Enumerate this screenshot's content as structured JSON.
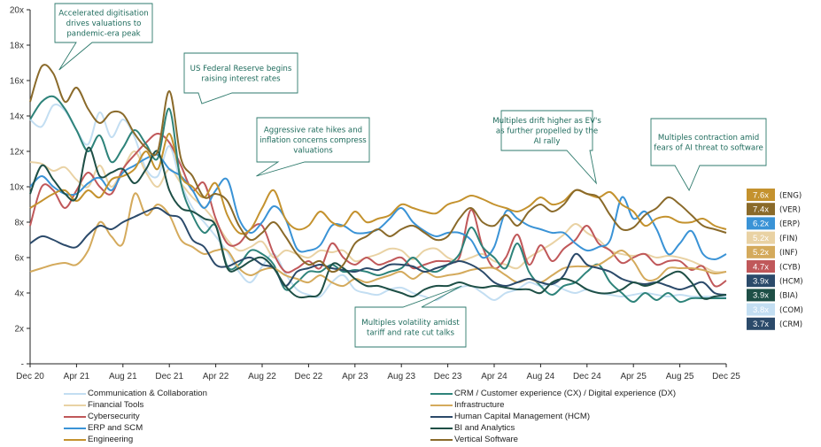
{
  "chart_data": {
    "type": "line",
    "title": "",
    "xlabel": "",
    "ylabel": "",
    "ylim": [
      0,
      20
    ],
    "y_ticks": [
      {
        "value": 0,
        "label": "-"
      },
      {
        "value": 2,
        "label": "2x"
      },
      {
        "value": 4,
        "label": "4x"
      },
      {
        "value": 6,
        "label": "6x"
      },
      {
        "value": 8,
        "label": "8x"
      },
      {
        "value": 10,
        "label": "10x"
      },
      {
        "value": 12,
        "label": "12x"
      },
      {
        "value": 14,
        "label": "14x"
      },
      {
        "value": 16,
        "label": "16x"
      },
      {
        "value": 18,
        "label": "18x"
      },
      {
        "value": 20,
        "label": "20x"
      }
    ],
    "x_ticks": [
      "Dec 20",
      "Apr 21",
      "Aug 21",
      "Dec 21",
      "Apr 22",
      "Aug 22",
      "Dec 22",
      "Apr 23",
      "Aug 23",
      "Dec 23",
      "Apr 24",
      "Aug 24",
      "Dec 24",
      "Apr 25",
      "Aug 25",
      "Dec 25"
    ],
    "x_range_months": [
      0,
      60
    ],
    "x_step_months": 1,
    "grid": false,
    "legend_position": "bottom",
    "series": [
      {
        "name": "Communication & Collaboration",
        "code": "COM",
        "color": "#c3def2",
        "last": "3.8x",
        "values": [
          13.8,
          13.4,
          14.6,
          14.3,
          13.2,
          12.4,
          14.2,
          12.8,
          13.8,
          12.8,
          11.0,
          10.6,
          12.3,
          10.2,
          8.8,
          8.0,
          7.2,
          6.3,
          5.2,
          4.6,
          5.5,
          6.2,
          5.1,
          4.2,
          3.9,
          3.8,
          4.6,
          5.0,
          4.2,
          4.0,
          3.9,
          4.2,
          4.3,
          4.0,
          3.8,
          3.6,
          4.0,
          4.3,
          4.4,
          4.0,
          3.6,
          4.0,
          4.2,
          4.6,
          4.4,
          4.5,
          4.2,
          4.0,
          4.2,
          4.0,
          3.9,
          3.8,
          3.9,
          4.0,
          3.9,
          3.8,
          3.9,
          3.8,
          3.8,
          3.8,
          3.8
        ]
      },
      {
        "name": "Financial Tools",
        "code": "FIN",
        "color": "#e9d2a4",
        "last": "5.2x",
        "values": [
          11.4,
          11.3,
          10.9,
          11.1,
          10.4,
          10.0,
          11.2,
          10.0,
          11.0,
          12.0,
          10.8,
          10.0,
          11.0,
          10.2,
          9.4,
          8.8,
          8.0,
          7.0,
          6.4,
          6.6,
          6.9,
          6.0,
          6.4,
          6.2,
          6.0,
          6.4,
          6.3,
          6.4,
          5.8,
          6.0,
          6.2,
          6.5,
          6.4,
          5.9,
          6.4,
          6.5,
          6.0,
          5.8,
          6.0,
          6.2,
          5.8,
          5.6,
          5.4,
          6.0,
          6.4,
          6.8,
          7.3,
          7.9,
          7.4,
          7.0,
          6.4,
          6.2,
          6.1,
          6.2,
          6.0,
          6.1,
          6.0,
          5.8,
          5.5,
          5.2,
          5.2
        ]
      },
      {
        "name": "Cybersecurity",
        "code": "CYB",
        "color": "#c0585a",
        "last": "4.7x",
        "values": [
          7.8,
          10.0,
          9.8,
          8.8,
          9.8,
          10.8,
          10.0,
          9.6,
          11.0,
          11.8,
          12.5,
          13.0,
          12.5,
          11.2,
          9.8,
          10.2,
          8.2,
          6.8,
          6.8,
          7.6,
          7.8,
          6.2,
          5.2,
          5.4,
          5.8,
          5.4,
          6.8,
          6.0,
          5.6,
          6.0,
          5.6,
          5.8,
          6.0,
          5.4,
          5.6,
          5.8,
          5.8,
          6.0,
          8.7,
          6.6,
          5.4,
          6.0,
          7.3,
          5.6,
          6.7,
          5.8,
          6.5,
          7.0,
          7.8,
          6.8,
          6.4,
          5.7,
          6.0,
          6.2,
          5.6,
          5.8,
          5.8,
          5.3,
          5.5,
          4.4,
          4.7
        ]
      },
      {
        "name": "ERP and SCM",
        "code": "ERP",
        "color": "#3a93d6",
        "last": "6.2x",
        "values": [
          10.0,
          10.6,
          10.0,
          9.6,
          9.6,
          10.2,
          10.5,
          9.8,
          10.8,
          11.2,
          11.6,
          11.8,
          11.0,
          10.6,
          9.8,
          8.8,
          9.8,
          10.4,
          8.2,
          7.4,
          8.0,
          8.9,
          8.2,
          6.5,
          6.4,
          6.7,
          7.8,
          7.8,
          7.4,
          7.4,
          7.6,
          8.2,
          8.8,
          8.0,
          7.5,
          7.2,
          7.4,
          7.4,
          7.0,
          6.0,
          6.6,
          8.6,
          8.2,
          7.8,
          7.6,
          7.4,
          7.4,
          6.8,
          6.4,
          6.6,
          7.0,
          9.4,
          8.2,
          8.6,
          7.6,
          6.2,
          6.8,
          7.5,
          6.2,
          5.9,
          6.2
        ]
      },
      {
        "name": "Engineering",
        "code": "ENG",
        "color": "#c4922e",
        "last": "7.6x",
        "values": [
          8.8,
          9.2,
          9.6,
          9.8,
          9.2,
          9.8,
          9.4,
          10.4,
          10.6,
          11.0,
          12.0,
          11.0,
          13.0,
          10.6,
          10.0,
          9.4,
          10.2,
          8.4,
          7.4,
          7.6,
          8.8,
          9.8,
          8.2,
          7.6,
          7.8,
          8.6,
          8.0,
          7.8,
          8.6,
          8.0,
          8.2,
          8.4,
          9.0,
          8.8,
          8.6,
          8.5,
          9.0,
          9.2,
          9.5,
          9.3,
          9.0,
          8.8,
          8.6,
          8.9,
          9.4,
          9.0,
          9.2,
          9.8,
          9.6,
          9.4,
          9.7,
          9.0,
          8.6,
          7.8,
          8.2,
          8.3,
          8.0,
          8.0,
          8.2,
          7.8,
          7.6
        ]
      },
      {
        "name": "CRM / Customer experience (CX) / Digital experience (DX)",
        "code": "CRM",
        "color": "#2e837a",
        "last": "3.7x",
        "values": [
          13.8,
          14.8,
          15.1,
          14.4,
          13.2,
          12.0,
          12.9,
          11.4,
          12.2,
          13.2,
          12.4,
          11.6,
          14.4,
          10.2,
          8.4,
          7.4,
          7.8,
          5.5,
          5.6,
          6.4,
          6.2,
          5.6,
          4.2,
          4.6,
          5.2,
          5.2,
          5.6,
          5.2,
          5.3,
          5.2,
          5.0,
          5.2,
          5.4,
          6.0,
          5.4,
          5.2,
          5.6,
          6.2,
          7.7,
          6.6,
          6.0,
          5.4,
          6.8,
          5.2,
          4.4,
          3.9,
          4.4,
          4.6,
          5.2,
          5.6,
          4.6,
          4.0,
          3.5,
          4.0,
          3.6,
          4.0,
          3.5,
          3.7,
          3.7,
          3.7,
          3.7
        ]
      },
      {
        "name": "Infrastructure",
        "code": "INF",
        "color": "#d4aa5c",
        "last": "5.2x",
        "values": [
          5.2,
          5.4,
          5.6,
          5.7,
          5.6,
          6.4,
          8.0,
          7.2,
          6.8,
          9.6,
          8.4,
          9.0,
          8.4,
          7.0,
          6.6,
          6.2,
          6.4,
          6.4,
          5.4,
          5.0,
          5.3,
          5.4,
          5.0,
          4.8,
          4.6,
          5.0,
          4.6,
          4.4,
          4.8,
          4.6,
          4.8,
          5.0,
          5.2,
          4.8,
          5.2,
          4.9,
          5.0,
          5.1,
          5.3,
          5.4,
          5.4,
          5.0,
          4.6,
          4.8,
          4.6,
          5.0,
          5.4,
          5.5,
          5.5,
          5.6,
          6.0,
          6.4,
          5.8,
          4.8,
          4.8,
          5.4,
          5.4,
          5.4,
          5.3,
          5.1,
          5.2
        ]
      },
      {
        "name": "Human Capital Management (HCM)",
        "code": "HCM",
        "color": "#2b4a6a",
        "last": "3.9x",
        "values": [
          6.8,
          7.2,
          7.0,
          6.7,
          6.6,
          7.3,
          7.8,
          7.6,
          8.0,
          8.3,
          8.6,
          8.8,
          8.4,
          8.2,
          7.0,
          6.6,
          5.6,
          5.5,
          5.8,
          6.0,
          5.6,
          5.4,
          4.4,
          5.2,
          5.4,
          5.6,
          5.4,
          5.3,
          5.2,
          5.4,
          5.3,
          5.6,
          5.6,
          5.5,
          5.2,
          5.4,
          5.6,
          5.8,
          5.6,
          5.2,
          4.6,
          4.4,
          4.6,
          4.8,
          4.6,
          4.5,
          5.0,
          6.2,
          5.6,
          5.4,
          5.2,
          4.8,
          4.6,
          4.5,
          4.6,
          4.4,
          4.2,
          4.4,
          4.6,
          4.0,
          3.9
        ]
      },
      {
        "name": "BI and Analytics",
        "code": "BIA",
        "color": "#1e4f46",
        "last": "3.9x",
        "values": [
          9.6,
          11.2,
          10.4,
          9.6,
          9.4,
          12.2,
          10.6,
          10.8,
          11.0,
          10.2,
          11.0,
          12.0,
          9.8,
          8.8,
          8.6,
          8.2,
          7.8,
          5.4,
          5.4,
          5.8,
          6.0,
          5.4,
          4.4,
          3.8,
          3.8,
          4.0,
          5.6,
          5.4,
          4.8,
          4.4,
          4.4,
          4.2,
          4.0,
          3.8,
          4.2,
          4.4,
          4.4,
          4.6,
          4.4,
          4.3,
          4.4,
          4.3,
          4.2,
          4.2,
          4.0,
          4.6,
          4.8,
          4.6,
          4.2,
          4.0,
          4.0,
          4.2,
          4.6,
          4.4,
          4.6,
          5.0,
          5.2,
          4.6,
          3.7,
          3.8,
          3.9
        ]
      },
      {
        "name": "Vertical Software",
        "code": "VER",
        "color": "#8a6a2a",
        "last": "7.4x",
        "values": [
          14.8,
          16.8,
          16.4,
          14.8,
          15.6,
          14.4,
          13.6,
          14.2,
          14.1,
          13.0,
          12.2,
          12.0,
          15.4,
          11.6,
          10.6,
          9.4,
          9.6,
          9.2,
          7.8,
          7.0,
          7.4,
          8.0,
          7.2,
          6.2,
          5.6,
          5.8,
          5.2,
          5.6,
          6.8,
          7.2,
          7.6,
          7.2,
          7.6,
          7.8,
          7.4,
          7.0,
          7.2,
          8.2,
          8.8,
          8.0,
          7.8,
          8.4,
          7.8,
          8.6,
          9.0,
          8.6,
          9.0,
          9.8,
          9.6,
          9.4,
          8.4,
          7.6,
          7.7,
          8.4,
          8.8,
          9.4,
          9.0,
          8.4,
          7.8,
          7.6,
          7.4
        ]
      }
    ],
    "end_badges": [
      {
        "value": "7.6x",
        "code": "(ENG)",
        "color": "#c4922e"
      },
      {
        "value": "7.4x",
        "code": "(VER)",
        "color": "#8a6a2a"
      },
      {
        "value": "6.2x",
        "code": "(ERP)",
        "color": "#3a93d6"
      },
      {
        "value": "5.2x",
        "code": "(FIN)",
        "color": "#e9d2a4"
      },
      {
        "value": "5.2x",
        "code": "(INF)",
        "color": "#d4aa5c"
      },
      {
        "value": "4.7x",
        "code": "(CYB)",
        "color": "#c0585a"
      },
      {
        "value": "3.9x",
        "code": "(HCM)",
        "color": "#2b4a6a"
      },
      {
        "value": "3.9x",
        "code": "(BIA)",
        "color": "#1e4f46"
      },
      {
        "value": "3.8x",
        "code": "(COM)",
        "color": "#c3def2"
      },
      {
        "value": "3.7x",
        "code": "(CRM)",
        "color": "#2b4a6a"
      }
    ],
    "annotations": [
      {
        "id": "digitisation",
        "lines": [
          "Accelerated digitisation",
          "drives valuations to",
          "pandemic-era peak"
        ],
        "x_month": 2.5,
        "y_value": 16.6
      },
      {
        "id": "fed",
        "lines": [
          "US Federal Reserve begins",
          "raising interest rates"
        ],
        "x_month": 14.8,
        "y_value": 14.7
      },
      {
        "id": "rate-hikes",
        "lines": [
          "Aggressive rate hikes and",
          "inflation concerns compress",
          "valuations"
        ],
        "x_month": 19.5,
        "y_value": 10.6
      },
      {
        "id": "ai-rally",
        "lines": [
          "Multiples drift higher as EV's",
          "as further propelled by the",
          "AI rally"
        ],
        "x_month": 48.8,
        "y_value": 10.2
      },
      {
        "id": "ai-threat",
        "lines": [
          "Multiples contraction amid",
          "fears of AI threat to software"
        ],
        "x_month": 56.8,
        "y_value": 9.8
      },
      {
        "id": "tariff",
        "lines": [
          "Multiples volatility amidst",
          "tariff and rate cut talks"
        ],
        "x_month": 37.2,
        "y_value": 4.4
      }
    ]
  }
}
